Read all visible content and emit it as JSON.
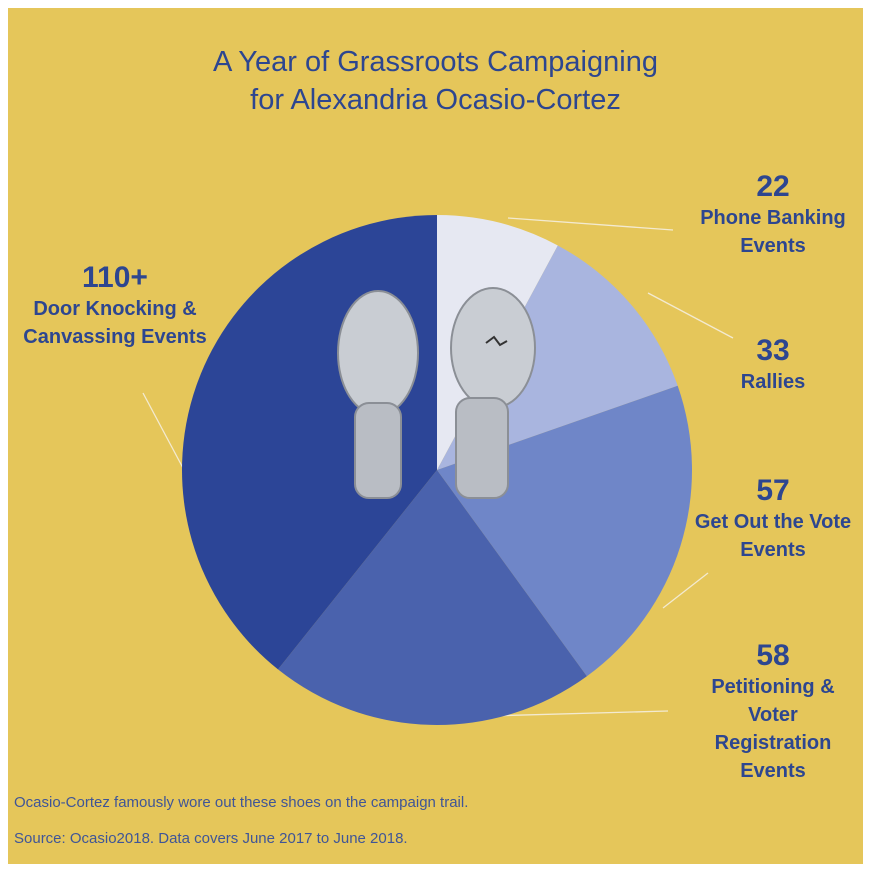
{
  "chart_data": {
    "type": "pie",
    "title": [
      "A Year of Grassroots Campaigning",
      "for Alexandria Ocasio-Cortez"
    ],
    "categories": [
      "Phone Banking Events",
      "Rallies",
      "Get Out the Vote Events",
      "Petitioning & Voter Registration Events",
      "Door Knocking & Canvassing Events"
    ],
    "values": [
      22,
      33,
      57,
      58,
      110
    ],
    "value_labels": [
      "22",
      "33",
      "57",
      "58",
      "110+"
    ],
    "colors": [
      "#e6e8f2",
      "#a9b5df",
      "#6f86c8",
      "#4a62ad",
      "#2c4597"
    ],
    "annotation": "Ocasio-Cortez famously wore out these shoes on the campaign trail.",
    "source": "Source: Ocasio2018. Data covers June 2017 to June 2018."
  }
}
